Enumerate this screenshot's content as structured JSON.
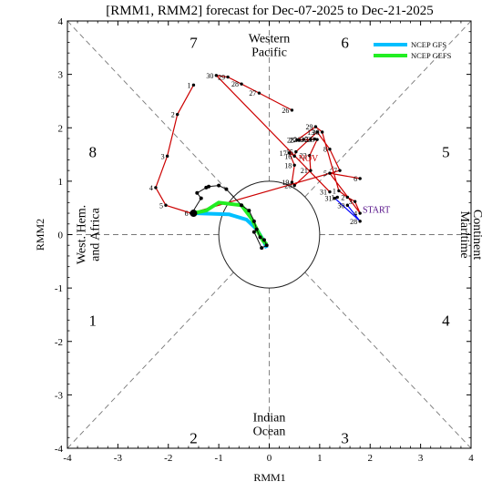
{
  "chart_data": {
    "type": "scatter",
    "title": "[RMM1, RMM2] forecast for Dec-07-2025 to Dec-21-2025",
    "xlabel": "RMM1",
    "ylabel": "RMM2",
    "xlim": [
      -4,
      4
    ],
    "ylim": [
      -4,
      4
    ],
    "x_ticks": [
      "-4",
      "-3",
      "-2",
      "-1",
      "0",
      "1",
      "2",
      "3",
      "4"
    ],
    "y_ticks": [
      "-4",
      "-3",
      "-2",
      "-1",
      "0",
      "1",
      "2",
      "3",
      "4"
    ],
    "phase_numbers": [
      "1",
      "2",
      "3",
      "4",
      "5",
      "6",
      "7",
      "8"
    ],
    "regions": {
      "top": [
        "Western",
        "Pacific"
      ],
      "bottom": [
        "Indian",
        "Ocean"
      ],
      "left": [
        "West. Hem.",
        "and Africa"
      ],
      "right": [
        "Maritime",
        "Continent"
      ]
    },
    "grid": false,
    "legend_position": "top-right",
    "legend": [
      {
        "label": "NCEP GFS",
        "color": "#00bfff"
      },
      {
        "label": "NCEP GEFS",
        "color": "#22ee22"
      }
    ],
    "annotations": {
      "start": {
        "text": "START",
        "x": 1.85,
        "y": 0.41
      },
      "nov": {
        "text": "NOV",
        "x": 0.58,
        "y": 1.37
      }
    },
    "observed_october": {
      "color": "#cc0000",
      "points": [
        {
          "label": "26",
          "x": 0.45,
          "y": 2.33
        },
        {
          "label": "27",
          "x": -0.2,
          "y": 2.65
        },
        {
          "label": "28",
          "x": -0.55,
          "y": 2.82
        },
        {
          "label": "29",
          "x": -0.82,
          "y": 2.95
        },
        {
          "label": "30",
          "x": -1.05,
          "y": 2.98
        },
        {
          "label": "31",
          "x": 1.2,
          "y": 0.8
        }
      ]
    },
    "observed_november": {
      "color": "#cc0000",
      "points": [
        {
          "label": "1",
          "x": -1.5,
          "y": 2.8
        },
        {
          "label": "2",
          "x": -1.82,
          "y": 2.25
        },
        {
          "label": "3",
          "x": -2.02,
          "y": 1.47
        },
        {
          "label": "4",
          "x": -2.25,
          "y": 0.88
        },
        {
          "label": "5",
          "x": -2.05,
          "y": 0.55
        },
        {
          "label": "6",
          "x": -1.55,
          "y": 0.4
        },
        {
          "label": "7",
          "x": 1.4,
          "y": 1.2
        },
        {
          "label": "8",
          "x": 1.2,
          "y": 1.6
        },
        {
          "label": "13",
          "x": 0.95,
          "y": 1.92
        },
        {
          "label": "15",
          "x": 0.53,
          "y": 1.55
        },
        {
          "label": "16",
          "x": 0.5,
          "y": 1.47
        },
        {
          "label": "17",
          "x": 0.4,
          "y": 1.53
        },
        {
          "label": "18",
          "x": 0.5,
          "y": 1.3
        },
        {
          "label": "19",
          "x": 0.45,
          "y": 0.98
        },
        {
          "label": "20",
          "x": 0.5,
          "y": 0.92
        },
        {
          "label": "21",
          "x": 0.82,
          "y": 1.2
        },
        {
          "label": "22",
          "x": 0.8,
          "y": 1.48
        },
        {
          "label": "23",
          "x": 0.95,
          "y": 1.78
        },
        {
          "label": "24",
          "x": 0.9,
          "y": 1.79
        },
        {
          "label": "25",
          "x": 0.82,
          "y": 1.78
        },
        {
          "label": "26",
          "x": 0.68,
          "y": 1.78
        },
        {
          "label": "27",
          "x": 0.6,
          "y": 1.77
        },
        {
          "label": "28",
          "x": 0.55,
          "y": 1.77
        },
        {
          "label": "29",
          "x": 0.92,
          "y": 2.02
        },
        {
          "label": "30",
          "x": 1.05,
          "y": 1.92
        },
        {
          "label": "1",
          "x": 1.38,
          "y": 0.82
        },
        {
          "label": "2",
          "x": 1.55,
          "y": 0.7
        },
        {
          "label": "3",
          "x": 1.7,
          "y": 0.62
        },
        {
          "label": "4",
          "x": 1.8,
          "y": 0.4
        },
        {
          "label": "5",
          "x": 1.2,
          "y": 1.15
        },
        {
          "label": "6",
          "x": 1.8,
          "y": 1.05
        }
      ]
    },
    "observed_december": {
      "color": "#0000ff",
      "points": [
        {
          "label": "30",
          "x": 1.55,
          "y": 0.55
        },
        {
          "label": "28",
          "x": 1.8,
          "y": 0.25
        },
        {
          "label": "31",
          "x": 1.3,
          "y": 0.68
        },
        {
          "label": "1",
          "x": 1.35,
          "y": 0.7
        }
      ]
    },
    "series": [
      {
        "name": "NCEP GFS",
        "color": "#00bfff",
        "x": [
          -1.5,
          -0.8,
          -0.45,
          -0.25,
          -0.12,
          -0.05
        ],
        "y": [
          0.4,
          0.38,
          0.28,
          0.1,
          -0.1,
          -0.25
        ]
      },
      {
        "name": "NCEP GEFS",
        "color": "#22ee22",
        "x": [
          -1.5,
          -1.25,
          -1.0,
          -0.55,
          -0.35,
          -0.22,
          -0.12,
          -0.05
        ],
        "y": [
          0.4,
          0.45,
          0.6,
          0.55,
          0.3,
          0.05,
          -0.12,
          -0.18
        ]
      },
      {
        "name": "",
        "color": "#111111",
        "x": [
          -1.52,
          -1.35,
          -1.43,
          -1.25,
          -1.2,
          -1.0,
          -0.85,
          -0.55,
          -0.4,
          -0.3,
          -0.25,
          -0.18,
          -0.1,
          -0.05,
          -0.15,
          -0.3
        ],
        "y": [
          0.42,
          0.68,
          0.78,
          0.88,
          0.9,
          0.92,
          0.85,
          0.55,
          0.45,
          0.25,
          0.1,
          -0.05,
          -0.1,
          -0.2,
          -0.25,
          0.05
        ]
      }
    ]
  }
}
